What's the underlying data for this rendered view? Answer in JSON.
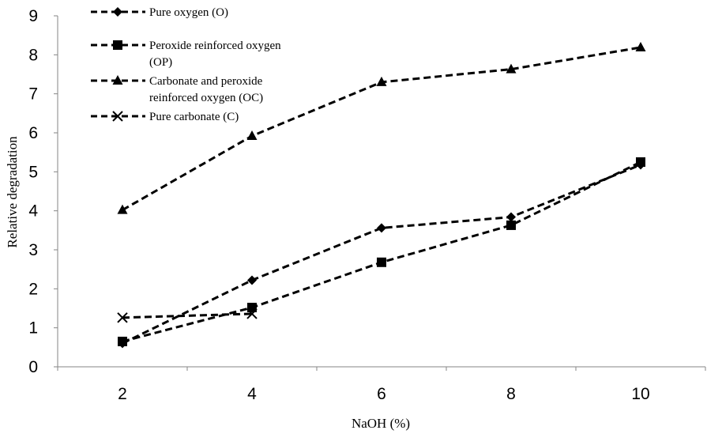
{
  "chart_data": {
    "type": "line",
    "title": "",
    "xlabel": "NaOH (%)",
    "ylabel": "Relative degradation",
    "categories": [
      "2",
      "4",
      "6",
      "8",
      "10"
    ],
    "ylim": [
      0,
      9
    ],
    "yticks": [
      "0",
      "1",
      "2",
      "3",
      "4",
      "5",
      "6",
      "7",
      "8",
      "9"
    ],
    "grid": false,
    "legend_position": "top-left",
    "series": [
      {
        "name": "Pure oxygen (O)",
        "name_lines": [
          "Pure oxygen (O)"
        ],
        "marker": "diamond",
        "values": [
          0.6,
          2.22,
          3.56,
          3.84,
          5.18
        ]
      },
      {
        "name": "Peroxide reinforced oxygen (OP)",
        "name_lines": [
          "Peroxide reinforced oxygen",
          "(OP)"
        ],
        "marker": "square",
        "values": [
          0.65,
          1.52,
          2.68,
          3.63,
          5.25
        ]
      },
      {
        "name": "Carbonate and peroxide reinforced oxygen (OC)",
        "name_lines": [
          "Carbonate and peroxide",
          "reinforced oxygen (OC)"
        ],
        "marker": "triangle",
        "values": [
          4.02,
          5.92,
          7.3,
          7.63,
          8.19
        ]
      },
      {
        "name": "Pure carbonate (C)",
        "name_lines": [
          "Pure carbonate (C)"
        ],
        "marker": "x",
        "values": [
          1.26,
          1.36,
          null,
          null,
          null
        ]
      }
    ]
  }
}
